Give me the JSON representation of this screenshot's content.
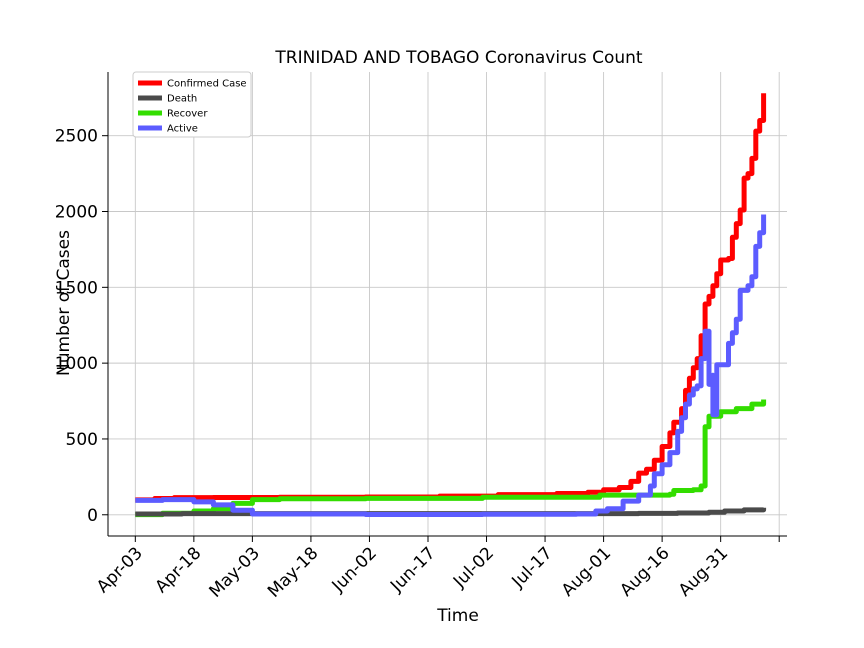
{
  "chart_data": {
    "type": "line",
    "title": "TRINIDAD AND TOBAGO Coronavirus Count",
    "xlabel": "Time",
    "ylabel": "Number of Cases",
    "x_range": [
      "2020-03-27",
      "2020-09-17"
    ],
    "ylim": [
      -140,
      2920
    ],
    "grid": true,
    "legend_position": "top-left",
    "x_ticks": [
      "2020-04-03",
      "2020-04-18",
      "2020-05-03",
      "2020-05-18",
      "2020-06-02",
      "2020-06-17",
      "2020-07-02",
      "2020-07-17",
      "2020-08-01",
      "2020-08-16",
      "2020-08-31",
      "2020-09-15"
    ],
    "x_tick_labels": [
      "Apr-03",
      "Apr-18",
      "May-03",
      "May-18",
      "Jun-02",
      "Jun-17",
      "Jul-02",
      "Jul-17",
      "Aug-01",
      "Aug-16",
      "Aug-31",
      ""
    ],
    "y_ticks": [
      0,
      500,
      1000,
      1500,
      2000,
      2500
    ],
    "y_tick_labels": [
      "0",
      "500",
      "1000",
      "1500",
      "2000",
      "2500"
    ],
    "series": [
      {
        "name": "Confirmed Case",
        "color": "#ff0000",
        "points": [
          [
            "2020-04-03",
            98
          ],
          [
            "2020-04-08",
            107
          ],
          [
            "2020-04-13",
            113
          ],
          [
            "2020-04-23",
            114
          ],
          [
            "2020-05-10",
            116
          ],
          [
            "2020-06-01",
            117
          ],
          [
            "2020-06-20",
            123
          ],
          [
            "2020-07-05",
            133
          ],
          [
            "2020-07-20",
            140
          ],
          [
            "2020-07-28",
            148
          ],
          [
            "2020-08-01",
            165
          ],
          [
            "2020-08-05",
            180
          ],
          [
            "2020-08-08",
            220
          ],
          [
            "2020-08-10",
            275
          ],
          [
            "2020-08-12",
            300
          ],
          [
            "2020-08-14",
            360
          ],
          [
            "2020-08-16",
            450
          ],
          [
            "2020-08-18",
            540
          ],
          [
            "2020-08-19",
            610
          ],
          [
            "2020-08-21",
            700
          ],
          [
            "2020-08-22",
            820
          ],
          [
            "2020-08-23",
            900
          ],
          [
            "2020-08-24",
            970
          ],
          [
            "2020-08-25",
            1030
          ],
          [
            "2020-08-26",
            1180
          ],
          [
            "2020-08-27",
            1390
          ],
          [
            "2020-08-28",
            1440
          ],
          [
            "2020-08-29",
            1510
          ],
          [
            "2020-08-30",
            1590
          ],
          [
            "2020-08-31",
            1680
          ],
          [
            "2020-09-02",
            1690
          ],
          [
            "2020-09-03",
            1830
          ],
          [
            "2020-09-04",
            1920
          ],
          [
            "2020-09-05",
            2010
          ],
          [
            "2020-09-06",
            2220
          ],
          [
            "2020-09-07",
            2250
          ],
          [
            "2020-09-08",
            2350
          ],
          [
            "2020-09-09",
            2530
          ],
          [
            "2020-09-10",
            2600
          ],
          [
            "2020-09-11",
            2660
          ],
          [
            "2020-09-11",
            2780
          ]
        ]
      },
      {
        "name": "Death",
        "color": "#4a4a4a",
        "points": [
          [
            "2020-04-03",
            5
          ],
          [
            "2020-04-15",
            8
          ],
          [
            "2020-05-03",
            8
          ],
          [
            "2020-07-31",
            8
          ],
          [
            "2020-08-10",
            9
          ],
          [
            "2020-08-20",
            12
          ],
          [
            "2020-08-28",
            16
          ],
          [
            "2020-09-01",
            25
          ],
          [
            "2020-09-06",
            32
          ],
          [
            "2020-09-11",
            46
          ]
        ]
      },
      {
        "name": "Recover",
        "color": "#33dd00",
        "points": [
          [
            "2020-04-03",
            1
          ],
          [
            "2020-04-10",
            10
          ],
          [
            "2020-04-18",
            25
          ],
          [
            "2020-04-23",
            40
          ],
          [
            "2020-04-28",
            75
          ],
          [
            "2020-05-03",
            100
          ],
          [
            "2020-05-10",
            105
          ],
          [
            "2020-06-01",
            108
          ],
          [
            "2020-07-01",
            115
          ],
          [
            "2020-07-31",
            130
          ],
          [
            "2020-08-18",
            135
          ],
          [
            "2020-08-19",
            160
          ],
          [
            "2020-08-24",
            165
          ],
          [
            "2020-08-26",
            190
          ],
          [
            "2020-08-27",
            580
          ],
          [
            "2020-08-28",
            650
          ],
          [
            "2020-08-31",
            680
          ],
          [
            "2020-09-04",
            700
          ],
          [
            "2020-09-08",
            730
          ],
          [
            "2020-09-11",
            760
          ]
        ]
      },
      {
        "name": "Active",
        "color": "#5c5cff",
        "points": [
          [
            "2020-04-03",
            95
          ],
          [
            "2020-04-10",
            100
          ],
          [
            "2020-04-18",
            85
          ],
          [
            "2020-04-23",
            65
          ],
          [
            "2020-04-28",
            30
          ],
          [
            "2020-05-03",
            5
          ],
          [
            "2020-06-01",
            2
          ],
          [
            "2020-07-01",
            3
          ],
          [
            "2020-07-25",
            5
          ],
          [
            "2020-07-30",
            25
          ],
          [
            "2020-08-02",
            40
          ],
          [
            "2020-08-06",
            90
          ],
          [
            "2020-08-10",
            130
          ],
          [
            "2020-08-13",
            190
          ],
          [
            "2020-08-14",
            270
          ],
          [
            "2020-08-16",
            330
          ],
          [
            "2020-08-18",
            410
          ],
          [
            "2020-08-20",
            550
          ],
          [
            "2020-08-21",
            640
          ],
          [
            "2020-08-22",
            730
          ],
          [
            "2020-08-23",
            790
          ],
          [
            "2020-08-24",
            830
          ],
          [
            "2020-08-25",
            850
          ],
          [
            "2020-08-26",
            1030
          ],
          [
            "2020-08-27",
            1210
          ],
          [
            "2020-08-28",
            860
          ],
          [
            "2020-08-29",
            920
          ],
          [
            "2020-08-29",
            660
          ],
          [
            "2020-08-30",
            990
          ],
          [
            "2020-08-31",
            990
          ],
          [
            "2020-09-02",
            1130
          ],
          [
            "2020-09-03",
            1200
          ],
          [
            "2020-09-04",
            1290
          ],
          [
            "2020-09-05",
            1480
          ],
          [
            "2020-09-07",
            1510
          ],
          [
            "2020-09-08",
            1570
          ],
          [
            "2020-09-09",
            1770
          ],
          [
            "2020-09-10",
            1860
          ],
          [
            "2020-09-11",
            1980
          ]
        ]
      }
    ]
  }
}
